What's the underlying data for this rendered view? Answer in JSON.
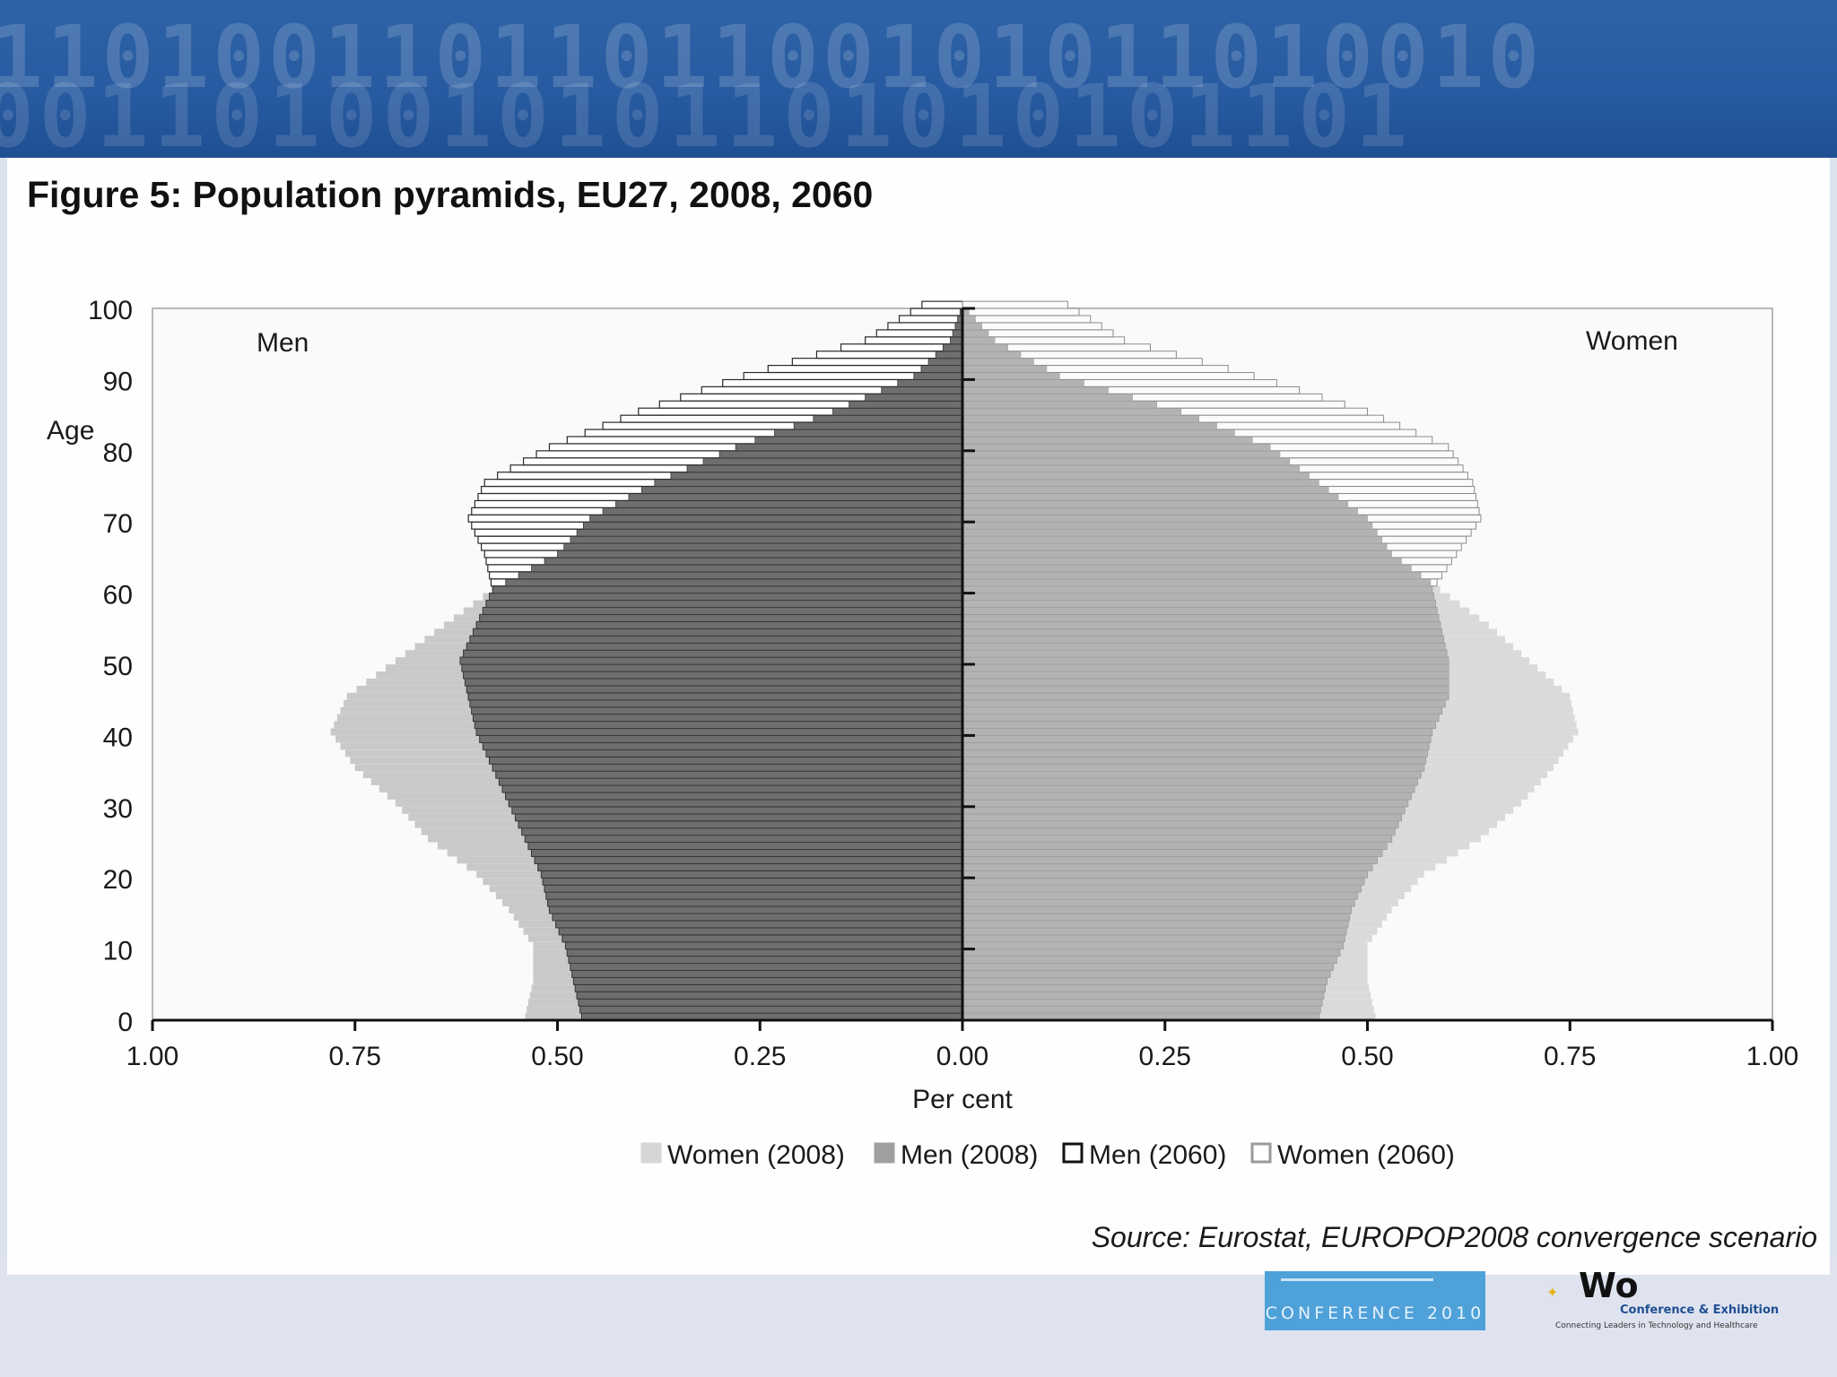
{
  "figure": {
    "title": "Figure 5: Population pyramids, EU27, 2008, 2060",
    "source": "Source: Eurostat, EUROPOP2008 convergence scenario"
  },
  "chart_data": {
    "type": "population-pyramid",
    "title": "Figure 5: Population pyramids, EU27, 2008, 2060",
    "xlabel": "Per cent",
    "ylabel": "Age",
    "left_panel_label": "Men",
    "right_panel_label": "Women",
    "xlim": [
      -1.0,
      1.0
    ],
    "ylim": [
      0,
      100
    ],
    "x_ticks": [
      -1.0,
      -0.75,
      -0.5,
      -0.25,
      0.0,
      0.25,
      0.5,
      0.75,
      1.0
    ],
    "x_tick_labels": [
      "1.00",
      "0.75",
      "0.50",
      "0.25",
      "0.00",
      "0.25",
      "0.50",
      "0.75",
      "1.00"
    ],
    "y_ticks": [
      0,
      10,
      20,
      30,
      40,
      50,
      60,
      70,
      80,
      90,
      100
    ],
    "y_tick_labels": [
      "0",
      "10",
      "20",
      "30",
      "40",
      "50",
      "60",
      "70",
      "80",
      "90",
      "100"
    ],
    "legend_position": "bottom",
    "legend": [
      "Women (2008)",
      "Men (2008)",
      "Men (2060)",
      "Women (2060)"
    ],
    "series": [
      {
        "name": "Men (2008)",
        "side": "left",
        "style": "solid-dark",
        "color": "#7d7d7d",
        "ages": [
          0,
          5,
          10,
          15,
          20,
          25,
          30,
          35,
          40,
          45,
          50,
          55,
          60,
          65,
          70,
          75,
          80,
          85,
          90,
          95,
          100
        ],
        "values": [
          0.54,
          0.53,
          0.53,
          0.56,
          0.6,
          0.66,
          0.7,
          0.75,
          0.78,
          0.76,
          0.7,
          0.64,
          0.58,
          0.5,
          0.46,
          0.38,
          0.28,
          0.16,
          0.06,
          0.015,
          0.0
        ]
      },
      {
        "name": "Women (2008)",
        "side": "right",
        "style": "solid-light",
        "color": "#c6c6c6",
        "ages": [
          0,
          5,
          10,
          15,
          20,
          25,
          30,
          35,
          40,
          45,
          50,
          55,
          60,
          65,
          70,
          75,
          80,
          85,
          90,
          95,
          100
        ],
        "values": [
          0.51,
          0.5,
          0.5,
          0.53,
          0.57,
          0.64,
          0.69,
          0.73,
          0.76,
          0.75,
          0.7,
          0.65,
          0.59,
          0.53,
          0.5,
          0.44,
          0.38,
          0.27,
          0.12,
          0.04,
          0.0
        ]
      },
      {
        "name": "Men (2060)",
        "side": "left",
        "style": "outline",
        "color": "#222222",
        "ages": [
          0,
          5,
          10,
          15,
          20,
          25,
          30,
          35,
          40,
          45,
          50,
          55,
          60,
          65,
          70,
          75,
          80,
          85,
          90,
          95,
          100
        ],
        "values": [
          0.47,
          0.48,
          0.49,
          0.51,
          0.52,
          0.54,
          0.56,
          0.58,
          0.6,
          0.61,
          0.62,
          0.6,
          0.58,
          0.59,
          0.61,
          0.59,
          0.51,
          0.4,
          0.27,
          0.12,
          0.05
        ]
      },
      {
        "name": "Women (2060)",
        "side": "right",
        "style": "outline-light",
        "color": "#8a8a8a",
        "ages": [
          0,
          5,
          10,
          15,
          20,
          25,
          30,
          35,
          40,
          45,
          50,
          55,
          60,
          65,
          70,
          75,
          80,
          85,
          90,
          95,
          100
        ],
        "values": [
          0.44,
          0.45,
          0.47,
          0.48,
          0.5,
          0.53,
          0.55,
          0.57,
          0.58,
          0.6,
          0.6,
          0.59,
          0.58,
          0.61,
          0.64,
          0.63,
          0.6,
          0.5,
          0.36,
          0.2,
          0.13
        ]
      }
    ]
  },
  "branding": {
    "logo_left_text": "CONFERENCE 2010",
    "logo_right_conf": "Conference & Exhibition",
    "logo_right_tagline": "Connecting Leaders in Technology and Healthcare"
  }
}
